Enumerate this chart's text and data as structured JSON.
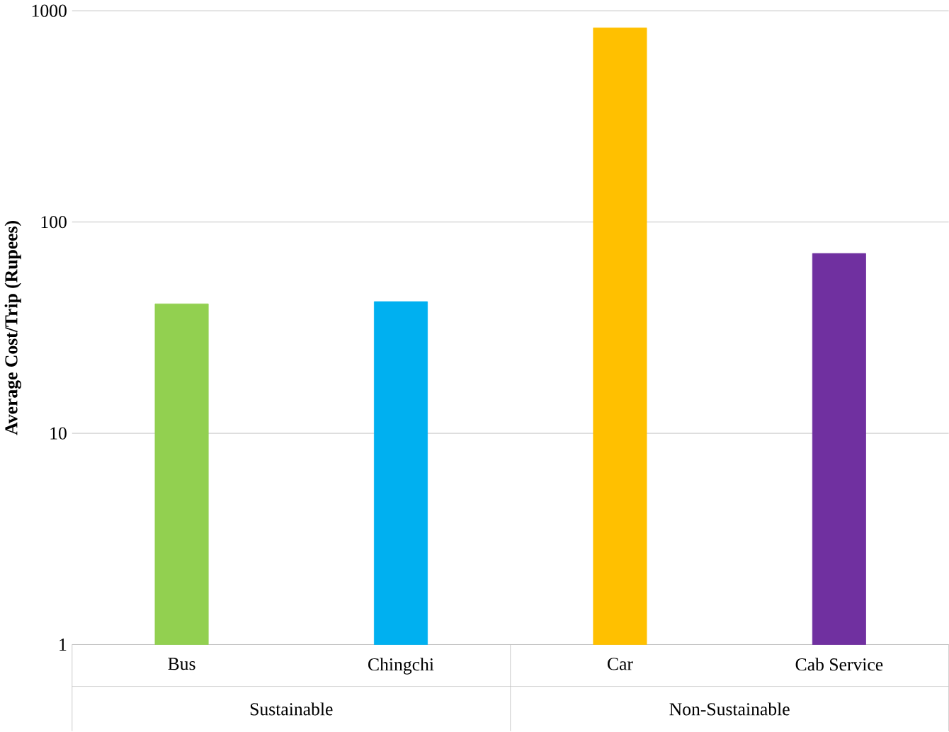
{
  "chart_data": {
    "type": "bar",
    "ylabel": "Average Cost/Trip (Rupees)",
    "categories": [
      "Bus",
      "Chingchi",
      "Car",
      "Cab Service"
    ],
    "values": [
      41,
      42,
      830,
      71
    ],
    "colors": [
      "#92d050",
      "#00b0f0",
      "#ffc000",
      "#7030a0"
    ],
    "log": "y",
    "ylim": [
      1,
      1000
    ],
    "yticks": [
      1,
      10,
      100,
      1000
    ],
    "grid": "y",
    "annotations": [
      "Sustainable",
      "Non-Sustainable"
    ]
  }
}
